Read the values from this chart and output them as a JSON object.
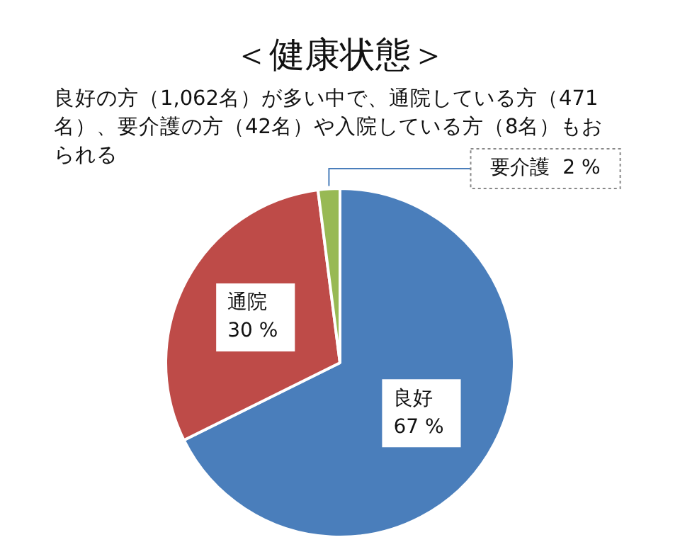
{
  "chart_data": {
    "type": "pie",
    "title": "＜健康状態＞",
    "subtitle": "良好の方（1,062名）が多い中で、通院している方（471名）、要介護の方（42名）や入院している方（8名）もおられる",
    "categories": [
      "良好",
      "通院",
      "要介護"
    ],
    "values": [
      67,
      30,
      2
    ],
    "value_labels": [
      "67 %",
      "30 %",
      "2 %"
    ],
    "colors": [
      "#4a7ebb",
      "#be4b48",
      "#98b954"
    ],
    "legend": false
  }
}
